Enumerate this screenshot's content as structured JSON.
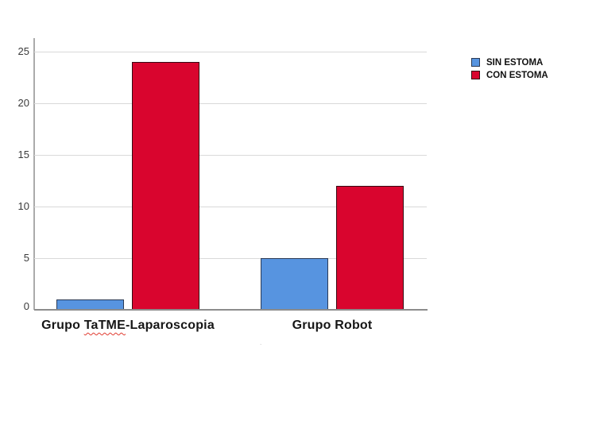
{
  "chart_data": {
    "type": "bar",
    "categories": [
      "Grupo TaTME-Laparoscopia",
      "Grupo Robot"
    ],
    "series": [
      {
        "name": "SIN ESTOMA",
        "values": [
          1,
          5
        ],
        "color": "#5794e0",
        "border_color": "#2b3a55"
      },
      {
        "name": "CON ESTOMA",
        "values": [
          24,
          12
        ],
        "color": "#d9052e",
        "border_color": "#350912"
      }
    ],
    "title": "",
    "xlabel": "",
    "ylabel": "",
    "ylim": [
      0,
      25
    ],
    "yticks": [
      0,
      5,
      10,
      15,
      20,
      25
    ],
    "grid": true,
    "legend_position": "top-right"
  },
  "labels": {
    "category1_prefix": "Grupo ",
    "category1_spellchecked_word": "TaTME",
    "category1_suffix": "-Laparoscopia",
    "category2": "Grupo Robot",
    "stray_mark": "."
  },
  "colors": {
    "gridline": "#d9d9d9",
    "x_axis": "#8c8c8c",
    "y_axis": "#ababab",
    "tick_text": "#3a3a3a",
    "label_text": "#161616",
    "spellcheck_underline": "#e03c31"
  }
}
